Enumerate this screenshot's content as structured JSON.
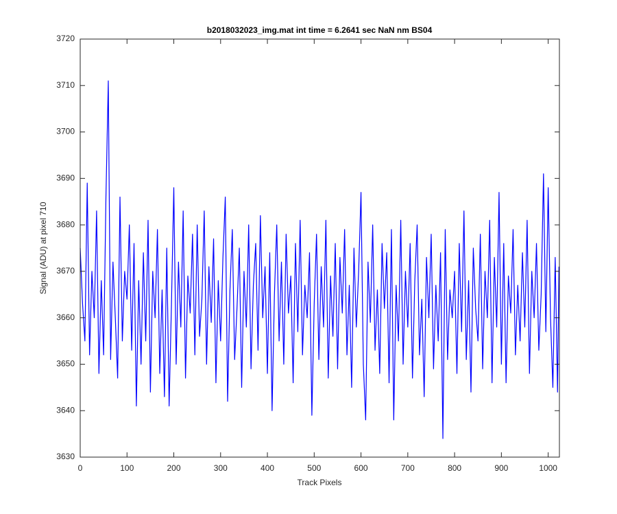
{
  "chart_data": {
    "type": "line",
    "title": "b2018032023_img.mat int time = 6.2641 sec  NaN nm BS04",
    "x_label": "Track Pixels",
    "y_label": "Signal (ADU) at pixel 710",
    "xlim": [
      0,
      1024
    ],
    "ylim": [
      3630,
      3720
    ],
    "xticks": [
      0,
      100,
      200,
      300,
      400,
      500,
      600,
      700,
      800,
      900,
      1000
    ],
    "yticks": [
      3630,
      3640,
      3650,
      3660,
      3670,
      3680,
      3690,
      3700,
      3710,
      3720
    ],
    "grid": false,
    "series": [
      {
        "color": "#0000ff",
        "x": [
          0,
          5,
          10,
          15,
          20,
          25,
          30,
          35,
          40,
          45,
          50,
          55,
          60,
          65,
          70,
          75,
          80,
          85,
          90,
          95,
          100,
          105,
          110,
          115,
          120,
          125,
          130,
          135,
          140,
          145,
          150,
          155,
          160,
          165,
          170,
          175,
          180,
          185,
          190,
          195,
          200,
          205,
          210,
          215,
          220,
          225,
          230,
          235,
          240,
          245,
          250,
          255,
          260,
          265,
          270,
          275,
          280,
          285,
          290,
          295,
          300,
          305,
          310,
          315,
          320,
          325,
          330,
          335,
          340,
          345,
          350,
          355,
          360,
          365,
          370,
          375,
          380,
          385,
          390,
          395,
          400,
          405,
          410,
          415,
          420,
          425,
          430,
          435,
          440,
          445,
          450,
          455,
          460,
          465,
          470,
          475,
          480,
          485,
          490,
          495,
          500,
          505,
          510,
          515,
          520,
          525,
          530,
          535,
          540,
          545,
          550,
          555,
          560,
          565,
          570,
          575,
          580,
          585,
          590,
          595,
          600,
          605,
          610,
          615,
          620,
          625,
          630,
          635,
          640,
          645,
          650,
          655,
          660,
          665,
          670,
          675,
          680,
          685,
          690,
          695,
          700,
          705,
          710,
          715,
          720,
          725,
          730,
          735,
          740,
          745,
          750,
          755,
          760,
          765,
          770,
          775,
          780,
          785,
          790,
          795,
          800,
          805,
          810,
          815,
          820,
          825,
          830,
          835,
          840,
          845,
          850,
          855,
          860,
          865,
          870,
          875,
          880,
          885,
          890,
          895,
          900,
          905,
          910,
          915,
          920,
          925,
          930,
          935,
          940,
          945,
          950,
          955,
          960,
          965,
          970,
          975,
          980,
          985,
          990,
          995,
          1000,
          1005,
          1010,
          1015,
          1020,
          1023
        ],
        "values": [
          3675,
          3663,
          3655,
          3689,
          3652,
          3670,
          3660,
          3683,
          3648,
          3668,
          3652,
          3686,
          3711,
          3651,
          3672,
          3660,
          3647,
          3686,
          3655,
          3670,
          3664,
          3680,
          3653,
          3676,
          3641,
          3668,
          3650,
          3674,
          3655,
          3681,
          3644,
          3670,
          3660,
          3679,
          3648,
          3666,
          3643,
          3675,
          3641,
          3663,
          3688,
          3650,
          3672,
          3658,
          3683,
          3647,
          3669,
          3661,
          3678,
          3652,
          3680,
          3656,
          3664,
          3683,
          3650,
          3671,
          3659,
          3677,
          3646,
          3668,
          3655,
          3673,
          3686,
          3642,
          3666,
          3679,
          3651,
          3662,
          3675,
          3645,
          3670,
          3658,
          3680,
          3649,
          3667,
          3676,
          3653,
          3682,
          3660,
          3671,
          3648,
          3674,
          3640,
          3665,
          3680,
          3655,
          3672,
          3650,
          3678,
          3661,
          3669,
          3646,
          3676,
          3657,
          3681,
          3652,
          3667,
          3660,
          3674,
          3639,
          3663,
          3678,
          3651,
          3671,
          3658,
          3681,
          3647,
          3669,
          3656,
          3676,
          3649,
          3673,
          3661,
          3679,
          3652,
          3667,
          3645,
          3675,
          3658,
          3670,
          3687,
          3650,
          3638,
          3672,
          3659,
          3680,
          3653,
          3666,
          3648,
          3676,
          3662,
          3674,
          3646,
          3679,
          3638,
          3667,
          3655,
          3681,
          3650,
          3670,
          3658,
          3676,
          3647,
          3668,
          3680,
          3652,
          3664,
          3643,
          3673,
          3660,
          3678,
          3649,
          3667,
          3655,
          3674,
          3634,
          3679,
          3651,
          3666,
          3660,
          3670,
          3648,
          3676,
          3657,
          3683,
          3651,
          3668,
          3644,
          3675,
          3662,
          3655,
          3678,
          3649,
          3670,
          3660,
          3681,
          3646,
          3673,
          3658,
          3687,
          3650,
          3676,
          3646,
          3669,
          3661,
          3679,
          3652,
          3667,
          3655,
          3674,
          3658,
          3681,
          3648,
          3670,
          3660,
          3676,
          3653,
          3665,
          3691,
          3657,
          3688,
          3660,
          3645,
          3673,
          3644,
          3671
        ]
      }
    ]
  }
}
